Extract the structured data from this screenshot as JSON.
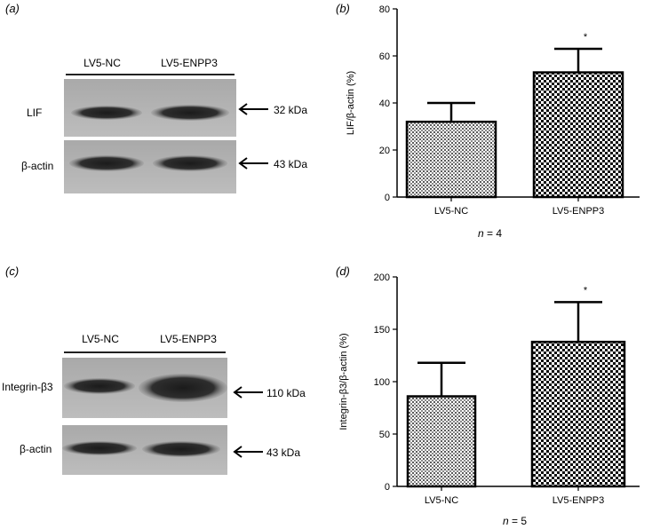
{
  "panels": {
    "a": {
      "letter": "(a)",
      "columns": [
        "LV5-NC",
        "LV5-ENPP3"
      ],
      "rows": [
        {
          "label": "LIF",
          "kda": "32 kDa"
        },
        {
          "label": "β-actin",
          "kda": "43 kDa"
        }
      ]
    },
    "b": {
      "letter": "(b)",
      "n_label": "n = 4",
      "n_var": "n",
      "n_val": "= 4"
    },
    "c": {
      "letter": "(c)",
      "columns": [
        "LV5-NC",
        "LV5-ENPP3"
      ],
      "rows": [
        {
          "label": "Integrin-β3",
          "kda": "110 kDa"
        },
        {
          "label": "β-actin",
          "kda": "43 kDa"
        }
      ]
    },
    "d": {
      "letter": "(d)",
      "n_label": "n = 5",
      "n_var": "n",
      "n_val": "= 5"
    }
  },
  "chart_data": [
    {
      "type": "bar",
      "panel": "b",
      "categories": [
        "LV5-NC",
        "LV5-ENPP3"
      ],
      "values": [
        32,
        53
      ],
      "errors": [
        8,
        10
      ],
      "significance": [
        "",
        "*"
      ],
      "ylabel": "LIF/β-actin (%)",
      "ylim": [
        0,
        80
      ],
      "yticks": [
        0,
        20,
        40,
        60,
        80
      ],
      "patterns": [
        "fine-dots",
        "checker"
      ]
    },
    {
      "type": "bar",
      "panel": "d",
      "categories": [
        "LV5-NC",
        "LV5-ENPP3"
      ],
      "values": [
        86,
        138
      ],
      "errors": [
        32,
        38
      ],
      "significance": [
        "",
        "*"
      ],
      "ylabel": "Integrin-β3/β-actin (%)",
      "ylim": [
        0,
        200
      ],
      "yticks": [
        0,
        50,
        100,
        150,
        200
      ],
      "patterns": [
        "fine-dots",
        "checker"
      ]
    }
  ]
}
